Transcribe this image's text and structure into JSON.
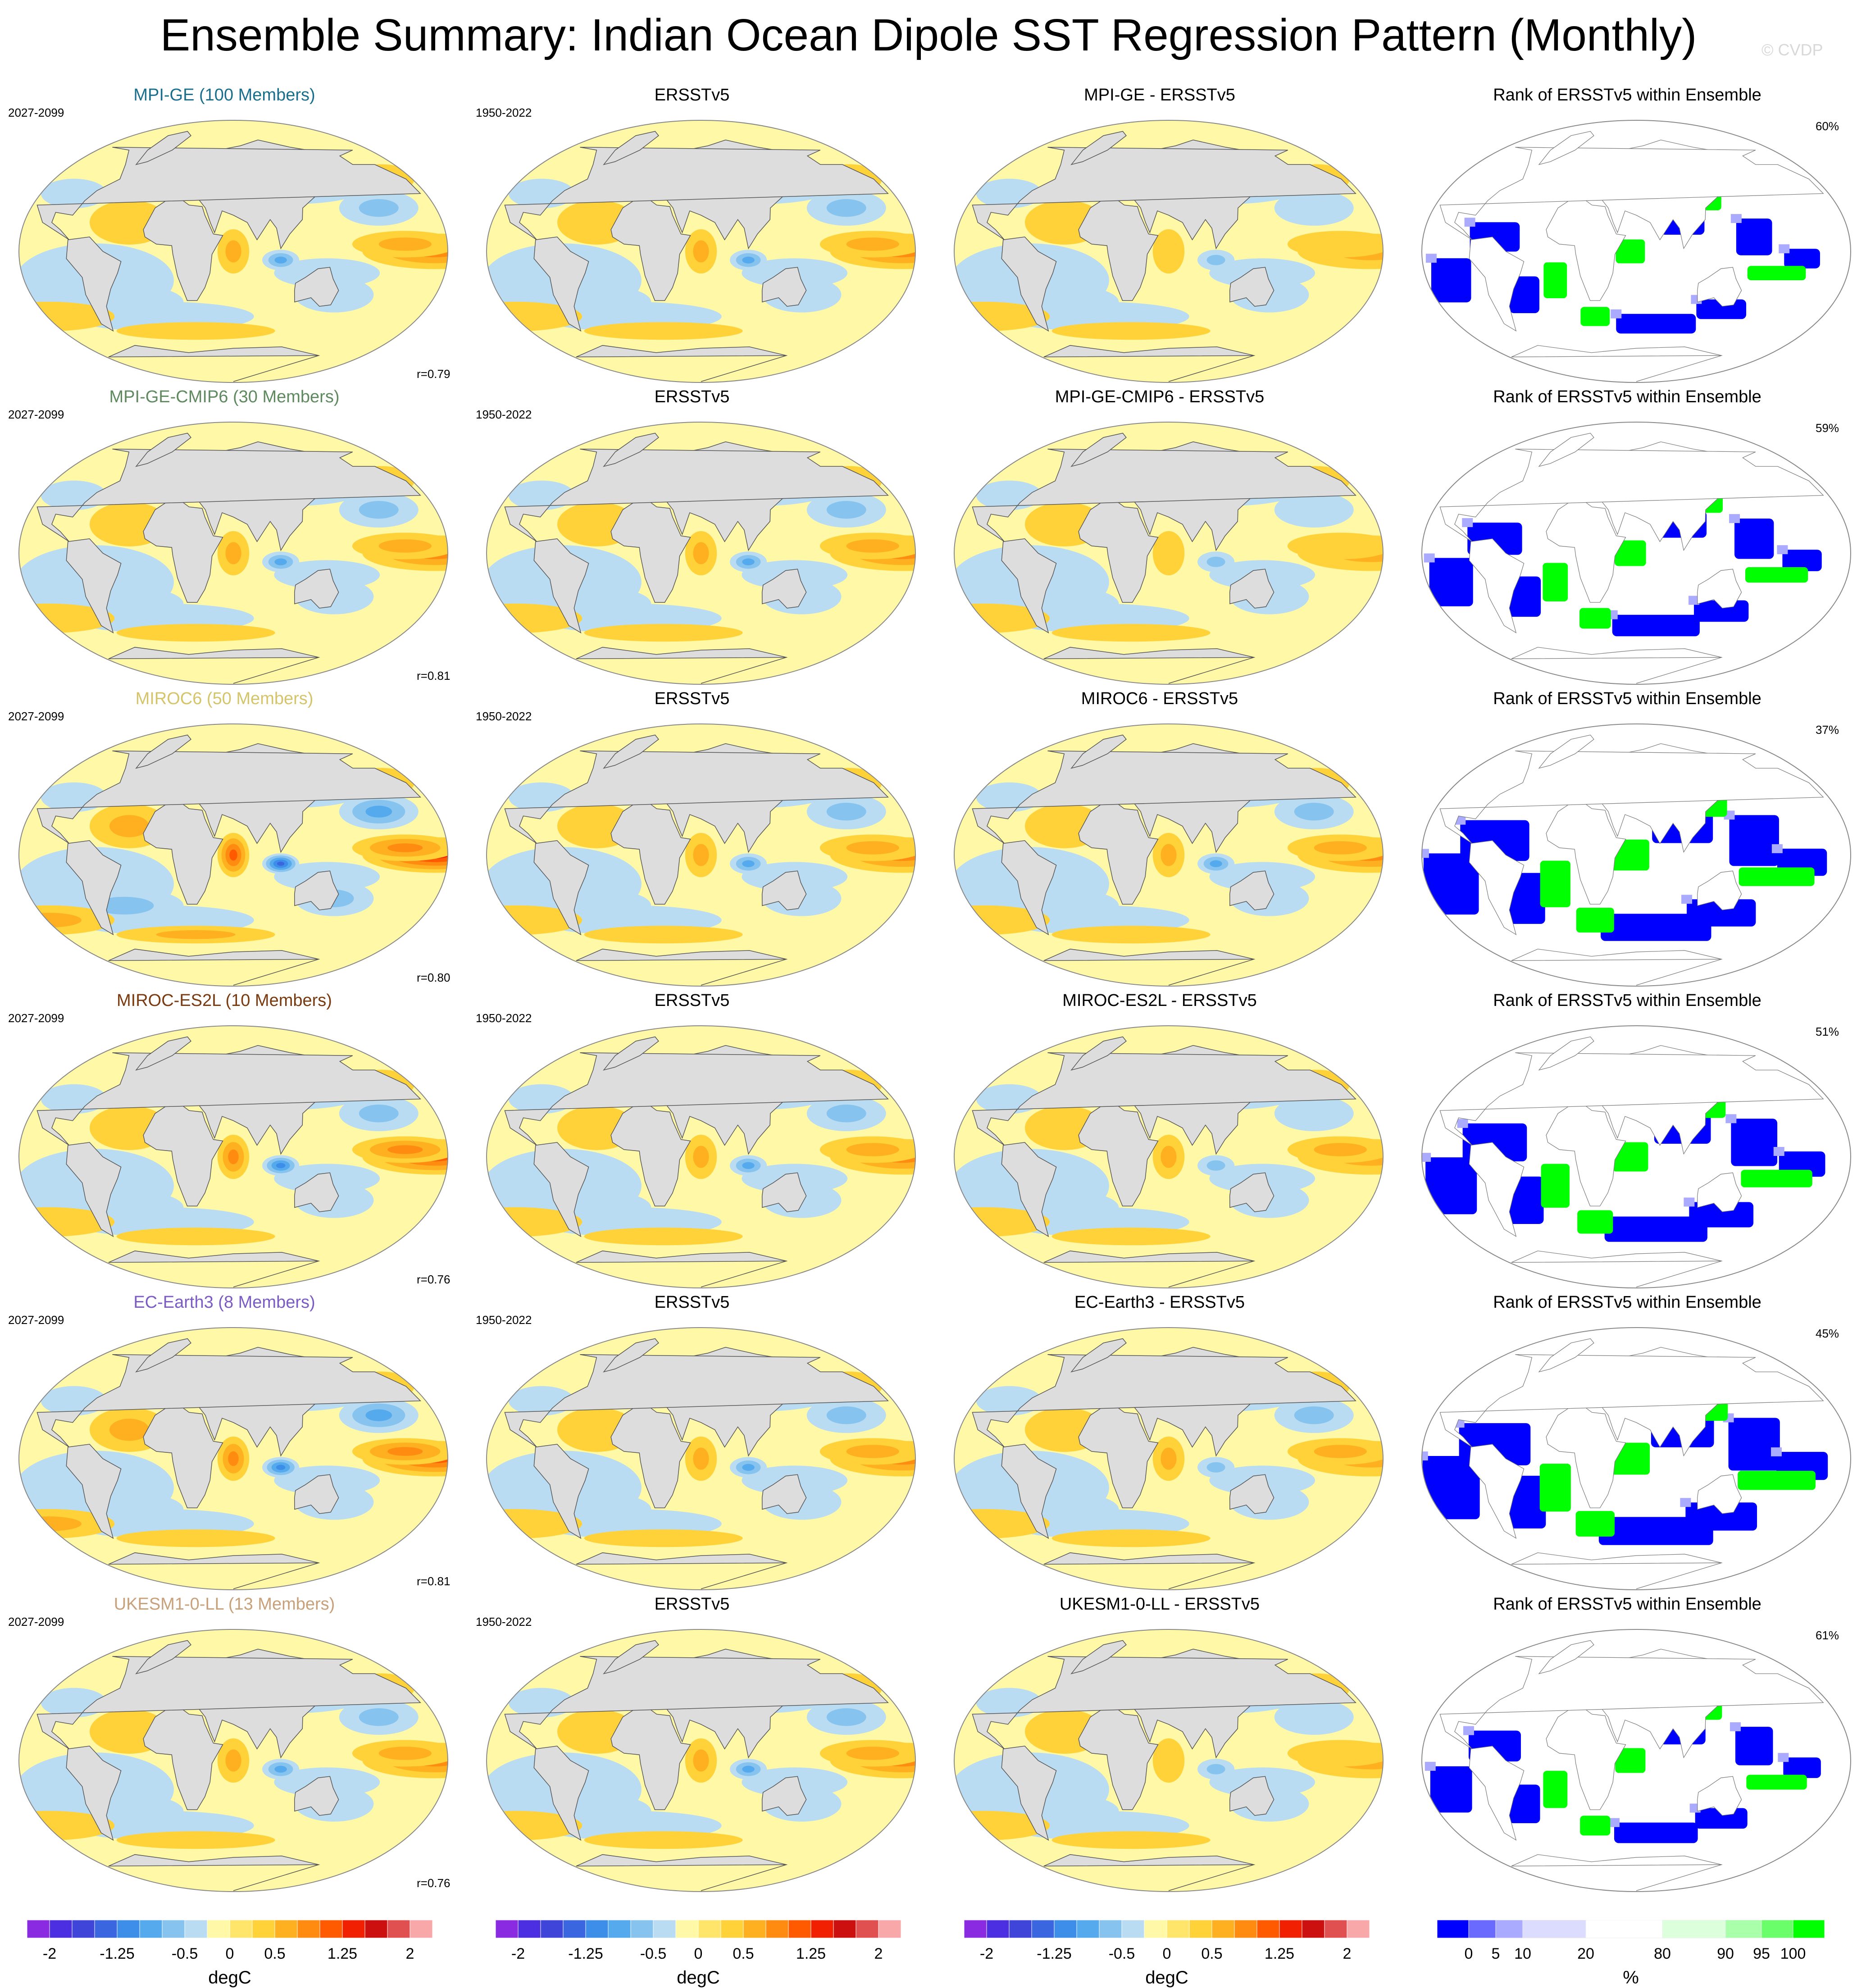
{
  "title": "Ensemble Summary: Indian Ocean Dipole SST Regression Pattern (Monthly)",
  "watermark": "© CVDP",
  "obs_period": "1950-2022",
  "model_period": "2027-2099",
  "obs_title": "ERSSTv5",
  "rank_title": "Rank of ERSSTv5 within Ensemble",
  "rows": [
    {
      "model": "MPI-GE (100 Members)",
      "diff": "MPI-GE - ERSSTv5",
      "r": "r=0.79",
      "rank_pct": "60%",
      "color": "#1a6e8e",
      "strength": 0.7,
      "rank_level": 0.35
    },
    {
      "model": "MPI-GE-CMIP6 (30 Members)",
      "diff": "MPI-GE-CMIP6 - ERSSTv5",
      "r": "r=0.81",
      "rank_pct": "59%",
      "color": "#5f8a5f",
      "strength": 0.85,
      "rank_level": 0.45
    },
    {
      "model": "MIROC6 (50 Members)",
      "diff": "MIROC6 - ERSSTv5",
      "r": "r=0.80",
      "rank_pct": "37%",
      "color": "#d6c46a",
      "strength": 1.25,
      "rank_level": 0.75
    },
    {
      "model": "MIROC-ES2L (10 Members)",
      "diff": "MIROC-ES2L - ERSSTv5",
      "r": "r=0.76",
      "rank_pct": "51%",
      "color": "#7a3a10",
      "strength": 1.05,
      "rank_level": 0.65
    },
    {
      "model": "EC-Earth3 (8 Members)",
      "diff": "EC-Earth3 - ERSSTv5",
      "r": "r=0.81",
      "rank_pct": "45%",
      "color": "#7b5cc4",
      "strength": 1.15,
      "rank_level": 0.8
    },
    {
      "model": "UKESM1-0-LL (13 Members)",
      "diff": "UKESM1-0-LL - ERSSTv5",
      "r": "r=0.76",
      "rank_pct": "61%",
      "color": "#c8a07a",
      "strength": 0.75,
      "rank_level": 0.4
    }
  ],
  "colorbar_sst": {
    "colors": [
      "#8a2be2",
      "#4b2fe0",
      "#3f45d8",
      "#3a66e0",
      "#3d8ee8",
      "#55aaee",
      "#86c3ee",
      "#b9dcf2",
      "#fff8a6",
      "#ffe66a",
      "#ffd23a",
      "#ffb020",
      "#ff8c10",
      "#ff5a00",
      "#f02000",
      "#cc1010",
      "#e05050",
      "#f8a8a8"
    ],
    "labels": [
      "-2",
      "-1.25",
      "-0.5",
      "0",
      "0.5",
      "1.25",
      "2"
    ],
    "unit": "degC"
  },
  "colorbar_rank": {
    "colors": [
      "#0000ff",
      "#6a6aff",
      "#aaaaff",
      "#dcdcff",
      "#ffffff",
      "#dcffdc",
      "#aaffaa",
      "#6aff6a",
      "#00ff00"
    ],
    "labels": [
      "0",
      "5",
      "10",
      "20",
      "80",
      "90",
      "95",
      "100"
    ],
    "unit": "%"
  }
}
